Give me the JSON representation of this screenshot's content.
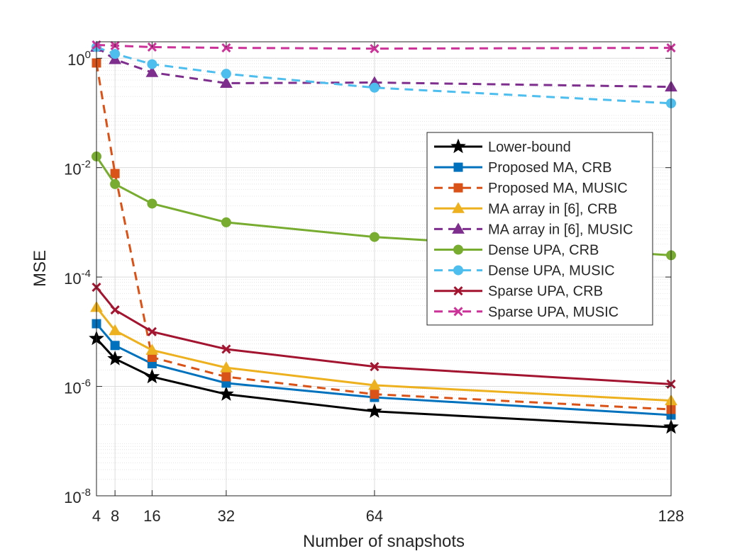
{
  "chart_data": {
    "type": "line",
    "title": "",
    "xlabel": "Number of snapshots",
    "ylabel": "MSE",
    "yscale": "log",
    "xlim": [
      4,
      128
    ],
    "ylim": [
      1e-08,
      2
    ],
    "grid": true,
    "legend_position": "right",
    "x": [
      4,
      8,
      16,
      32,
      64,
      128
    ],
    "x_ticks": [
      "4",
      "8",
      "16",
      "32",
      "64",
      "128"
    ],
    "y_ticks": [
      {
        "value": 1e-08,
        "base": "10",
        "exp": "-8"
      },
      {
        "value": 1e-06,
        "base": "10",
        "exp": "-6"
      },
      {
        "value": 0.0001,
        "base": "10",
        "exp": "-4"
      },
      {
        "value": 0.01,
        "base": "10",
        "exp": "-2"
      },
      {
        "value": 1,
        "base": "10",
        "exp": "0"
      }
    ],
    "series": [
      {
        "name": "Lower-bound",
        "color": "#000000",
        "dash": "solid",
        "marker": "star",
        "values": [
          7.5e-06,
          3.2e-06,
          1.5e-06,
          7.2e-07,
          3.5e-07,
          1.8e-07
        ]
      },
      {
        "name": "Proposed MA, CRB",
        "color": "#0072BD",
        "dash": "solid",
        "marker": "square",
        "values": [
          1.4e-05,
          5.6e-06,
          2.6e-06,
          1.15e-06,
          6.3e-07,
          3e-07
        ]
      },
      {
        "name": "Proposed MA, MUSIC",
        "color": "#D95319",
        "dash": "dashed",
        "marker": "square",
        "values": [
          0.82,
          0.0078,
          3.4e-06,
          1.5e-06,
          7.2e-07,
          3.8e-07
        ]
      },
      {
        "name": "MA array in [6], CRB",
        "color": "#EDB120",
        "dash": "solid",
        "marker": "triangle",
        "values": [
          2.8e-05,
          1.05e-05,
          4.6e-06,
          2.2e-06,
          1.05e-06,
          5.5e-07
        ]
      },
      {
        "name": "MA array in [6], MUSIC",
        "color": "#7E2F8E",
        "dash": "dashed",
        "marker": "triangle",
        "values": [
          1.6,
          0.95,
          0.55,
          0.35,
          0.36,
          0.3
        ]
      },
      {
        "name": "Dense UPA, CRB",
        "color": "#77AC30",
        "dash": "solid",
        "marker": "circle",
        "values": [
          0.016,
          0.005,
          0.0022,
          0.001,
          0.00054,
          0.00025
        ]
      },
      {
        "name": "Dense UPA, MUSIC",
        "color": "#4DBEEE",
        "dash": "dashed",
        "marker": "circle",
        "values": [
          1.6,
          1.2,
          0.78,
          0.52,
          0.29,
          0.15
        ]
      },
      {
        "name": "Sparse UPA, CRB",
        "color": "#A2142F",
        "dash": "solid",
        "marker": "x",
        "values": [
          6.5e-05,
          2.5e-05,
          1e-05,
          4.8e-06,
          2.3e-06,
          1.1e-06
        ]
      },
      {
        "name": "Sparse UPA, MUSIC",
        "color": "#CC3399",
        "dash": "dashed",
        "marker": "x",
        "values": [
          1.75,
          1.7,
          1.6,
          1.55,
          1.5,
          1.55
        ]
      }
    ]
  }
}
